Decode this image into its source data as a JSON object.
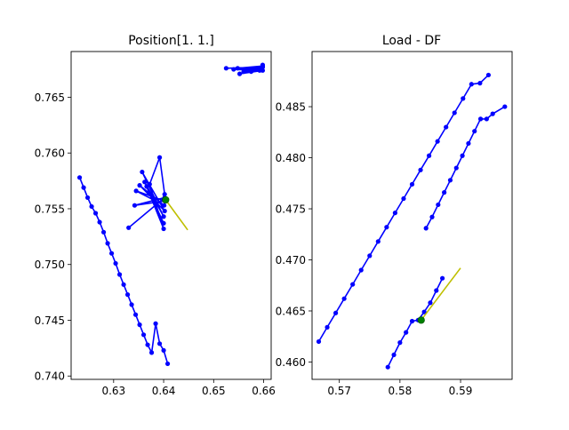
{
  "chart_data": [
    {
      "type": "line",
      "title": "Position[1. 1.]",
      "xlabel": "",
      "ylabel": "",
      "xlim": [
        0.6215,
        0.6615
      ],
      "ylim": [
        0.7397,
        0.7691
      ],
      "xticks": [
        0.63,
        0.64,
        0.65,
        0.66
      ],
      "xtick_labels": [
        "0.63",
        "0.64",
        "0.65",
        "0.66"
      ],
      "yticks": [
        0.74,
        0.745,
        0.75,
        0.755,
        0.76,
        0.765
      ],
      "ytick_labels": [
        "0.740",
        "0.745",
        "0.750",
        "0.755",
        "0.760",
        "0.765"
      ],
      "series": [
        {
          "color": "#0000ff",
          "marker": "dot",
          "points": [
            [
              0.6232,
              0.7578
            ],
            [
              0.624,
              0.7569
            ],
            [
              0.6248,
              0.756
            ],
            [
              0.6256,
              0.7552
            ],
            [
              0.6264,
              0.7546
            ],
            [
              0.6272,
              0.7538
            ],
            [
              0.628,
              0.7529
            ],
            [
              0.6288,
              0.7519
            ],
            [
              0.6296,
              0.751
            ],
            [
              0.6304,
              0.7501
            ],
            [
              0.6312,
              0.7491
            ],
            [
              0.632,
              0.7482
            ],
            [
              0.6328,
              0.7473
            ],
            [
              0.6336,
              0.7464
            ],
            [
              0.6344,
              0.7455
            ],
            [
              0.6352,
              0.7446
            ],
            [
              0.636,
              0.7437
            ],
            [
              0.6368,
              0.7428
            ],
            [
              0.6376,
              0.7421
            ],
            [
              0.6384,
              0.7447
            ],
            [
              0.6392,
              0.7429
            ],
            [
              0.64,
              0.7423
            ],
            [
              0.6408,
              0.7411
            ]
          ]
        },
        {
          "color": "#0000ff",
          "marker": "dot",
          "points": [
            [
              0.633,
              0.7533
            ],
            [
              0.6402,
              0.756
            ],
            [
              0.6342,
              0.7553
            ],
            [
              0.6402,
              0.7557
            ],
            [
              0.6345,
              0.7566
            ],
            [
              0.6401,
              0.7553
            ],
            [
              0.6352,
              0.7571
            ],
            [
              0.6402,
              0.7548
            ],
            [
              0.6357,
              0.7583
            ],
            [
              0.64,
              0.7543
            ],
            [
              0.6362,
              0.7574
            ],
            [
              0.64,
              0.7537
            ],
            [
              0.6366,
              0.757
            ],
            [
              0.64,
              0.7532
            ],
            [
              0.6372,
              0.7572
            ],
            [
              0.6392,
              0.7596
            ],
            [
              0.6402,
              0.7563
            ]
          ]
        },
        {
          "color": "#0000ff",
          "marker": "dot",
          "points": [
            [
              0.6525,
              0.7676
            ],
            [
              0.6598,
              0.7677
            ],
            [
              0.654,
              0.7675
            ],
            [
              0.6598,
              0.7674
            ],
            [
              0.6552,
              0.7671
            ],
            [
              0.6596,
              0.7676
            ],
            [
              0.656,
              0.7673
            ],
            [
              0.6598,
              0.7678
            ],
            [
              0.6548,
              0.7676
            ],
            [
              0.6592,
              0.7674
            ],
            [
              0.6575,
              0.7673
            ],
            [
              0.6598,
              0.7679
            ]
          ]
        },
        {
          "color": "#bfbf00",
          "marker": "none",
          "points": [
            [
              0.6404,
              0.7558
            ],
            [
              0.6448,
              0.7531
            ]
          ]
        }
      ],
      "highlight_point": {
        "x": 0.6404,
        "y": 0.7558,
        "color": "#008000"
      }
    },
    {
      "type": "line",
      "title": "Load - DF",
      "xlabel": "",
      "ylabel": "",
      "xlim": [
        0.5655,
        0.5985
      ],
      "ylim": [
        0.4583,
        0.4904
      ],
      "xticks": [
        0.57,
        0.58,
        0.59
      ],
      "xtick_labels": [
        "0.57",
        "0.58",
        "0.59"
      ],
      "yticks": [
        0.46,
        0.465,
        0.47,
        0.475,
        0.48,
        0.485
      ],
      "ytick_labels": [
        "0.460",
        "0.465",
        "0.470",
        "0.475",
        "0.480",
        "0.485"
      ],
      "series": [
        {
          "color": "#0000ff",
          "marker": "dot",
          "points": [
            [
              0.5666,
              0.462
            ],
            [
              0.568,
              0.4634
            ],
            [
              0.5694,
              0.4648
            ],
            [
              0.5708,
              0.4662
            ],
            [
              0.5722,
              0.4676
            ],
            [
              0.5736,
              0.469
            ],
            [
              0.575,
              0.4704
            ],
            [
              0.5764,
              0.4718
            ],
            [
              0.5778,
              0.4732
            ],
            [
              0.5792,
              0.4746
            ],
            [
              0.5806,
              0.476
            ],
            [
              0.582,
              0.4774
            ],
            [
              0.5834,
              0.4788
            ],
            [
              0.5848,
              0.4802
            ],
            [
              0.5862,
              0.4816
            ],
            [
              0.5876,
              0.483
            ],
            [
              0.589,
              0.4844
            ],
            [
              0.5904,
              0.4858
            ],
            [
              0.5918,
              0.4872
            ],
            [
              0.5932,
              0.4873
            ],
            [
              0.5946,
              0.4881
            ]
          ]
        },
        {
          "color": "#0000ff",
          "marker": "dot",
          "points": [
            [
              0.5843,
              0.4731
            ],
            [
              0.5853,
              0.4742
            ],
            [
              0.5863,
              0.4754
            ],
            [
              0.5873,
              0.4766
            ],
            [
              0.5883,
              0.4778
            ],
            [
              0.5893,
              0.479
            ],
            [
              0.5903,
              0.4802
            ],
            [
              0.5913,
              0.4814
            ],
            [
              0.5923,
              0.4826
            ],
            [
              0.5933,
              0.4838
            ],
            [
              0.5943,
              0.4838
            ],
            [
              0.5953,
              0.4843
            ],
            [
              0.5973,
              0.485
            ]
          ]
        },
        {
          "color": "#0000ff",
          "marker": "dot",
          "points": [
            [
              0.578,
              0.4595
            ],
            [
              0.579,
              0.4607
            ],
            [
              0.58,
              0.4619
            ],
            [
              0.581,
              0.4629
            ],
            [
              0.582,
              0.464
            ],
            [
              0.583,
              0.4641
            ],
            [
              0.584,
              0.4649
            ],
            [
              0.585,
              0.4658
            ],
            [
              0.586,
              0.467
            ],
            [
              0.587,
              0.4682
            ]
          ]
        },
        {
          "color": "#bfbf00",
          "marker": "none",
          "points": [
            [
              0.5835,
              0.4641
            ],
            [
              0.59,
              0.4692
            ]
          ]
        }
      ],
      "highlight_point": {
        "x": 0.5835,
        "y": 0.4641,
        "color": "#008000"
      }
    }
  ]
}
